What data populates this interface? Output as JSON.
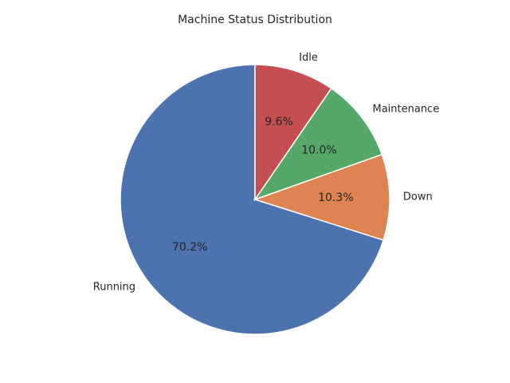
{
  "chart_data": {
    "type": "pie",
    "title": "Machine Status Distribution",
    "categories": [
      "Running",
      "Down",
      "Maintenance",
      "Idle"
    ],
    "values": [
      70.2,
      10.3,
      10.0,
      9.6
    ],
    "percent_labels": [
      "70.2%",
      "10.3%",
      "10.0%",
      "9.6%"
    ],
    "colors": [
      "#4c72b0",
      "#dd8452",
      "#55a868",
      "#c44e52"
    ],
    "start_angle_deg": 90,
    "direction": "counterclockwise",
    "legend": "none"
  }
}
